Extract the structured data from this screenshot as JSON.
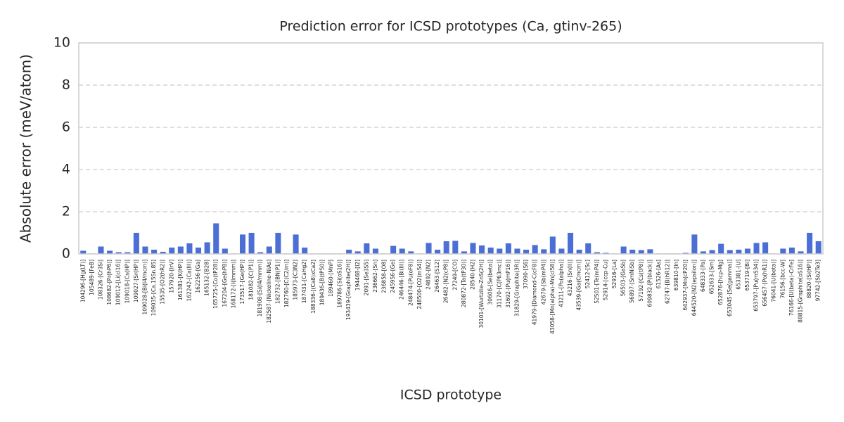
{
  "chart_data": {
    "type": "bar",
    "title": "Prediction error for ICSD prototypes (Ca, gtinv-265)",
    "xlabel": "ICSD prototype",
    "ylabel": "Absolute error (meV/atom)",
    "color": "#4c6fd6",
    "grid": true,
    "ylim": [
      0,
      10
    ],
    "yticks": [
      0,
      2,
      4,
      6,
      8,
      10
    ],
    "categories": [
      "104296-[Hg(LT)]",
      "105489-[FeB]",
      "108326-[Cr3Si]",
      "108682-[Pr(hP6)]",
      "109012-[Li(cI16)]",
      "109018-[Cs(HP)]",
      "109027-[Sr(HP)]",
      "109028-[Bi(I4/mcm)]",
      "109035-[Ca.15Sn.85]",
      "15535-[O2(hR2)]",
      "157920-[IrV]",
      "161381-[K(HP)]",
      "162242-[Ca(III)]",
      "162256-[Ga]",
      "165132-[B28]",
      "165725-[Co(tP28)]",
      "167204-[Ge(hP8)]",
      "168172-[I(Immm)]",
      "173517-[Ge(HP)]",
      "181082-[C(P1)]",
      "181908-[Si(I4/mmm)]",
      "182587-[Nickeline-NiAs]",
      "182732-[BN(P1)]",
      "182760-[C(C2/m)]",
      "185973-[C3N2]",
      "187431-[CaHg2]",
      "188336-[(Ca8)xCa2]",
      "189436-[B(tP50)]",
      "189460-[MnP]",
      "189786-[Si(oS16)]",
      "193439-[Graphite(2H)]",
      "194468-[I2]",
      "2091-[Se3S5]",
      "236662-[Sn]",
      "236858-[O8]",
      "245956-[Ge]",
      "246446-[Bi(III)]",
      "248474-[Pu(oF8)]",
      "248500-[O2(mS4)]",
      "24892-[N2]",
      "26463-[S12]",
      "26482-[N2(cP8)]",
      "27249-[CO]",
      "280872-[Ta(tP30)]",
      "28540-[H2]",
      "30101-[Wurtzite-ZnS(2H)]",
      "30606-[Se(beta)]",
      "31170-[C(P63mc)]",
      "31692-[Pu(mP16)]",
      "31829-[Graphite(3R)]",
      "37090-[S6]",
      "41979-[Diamond-C(cF8)]",
      "42679-[Sb(mP4)]",
      "43058-[Mn(alpha)-Mn(cI58)]",
      "43211-[Po(alpha)]",
      "43216-[Sn(II)]",
      "43539-[Ga(Cmcm)]",
      "52412-[Sc]",
      "52501-[Te(mP4)]",
      "52914-[ccp-Cu]",
      "52916-[La]",
      "56503-[GaSb]",
      "56897-[SmNiSb]",
      "57192-[Cs(tP8)]",
      "609832-[P(black)]",
      "61526-[As]",
      "62747-[B(hR12)]",
      "639810-[In]",
      "642937-[Mn(cP20)]",
      "644520-[N2(epsilon)]",
      "648333-[Pa]",
      "652633-[Sm]",
      "652876-[hcp-Mg]",
      "653045-[Se(gamma)]",
      "653381-[U]",
      "653719-[Bi]",
      "653797-[Pu(mS34)]",
      "656457-[Po(hR1)]",
      "76041-[U(beta)]",
      "76156-[bcc-W]",
      "76166-[U(beta)-CrFe]",
      "88815-[Graphite(oS16)]",
      "88820-[Si(HP)]",
      "97742-[Sb2Te3]"
    ],
    "values": [
      0.15,
      0.02,
      0.35,
      0.15,
      0.08,
      0.08,
      1.0,
      0.35,
      0.2,
      0.1,
      0.3,
      0.35,
      0.5,
      0.3,
      0.55,
      1.45,
      0.25,
      0.02,
      0.92,
      1.0,
      0.08,
      0.35,
      1.0,
      0.02,
      0.92,
      0.3,
      0.02,
      0.02,
      0.02,
      0.02,
      0.2,
      0.12,
      0.5,
      0.25,
      0.02,
      0.38,
      0.25,
      0.12,
      0.02,
      0.52,
      0.2,
      0.6,
      0.62,
      0.12,
      0.52,
      0.4,
      0.3,
      0.25,
      0.5,
      0.25,
      0.2,
      0.42,
      0.22,
      0.82,
      0.25,
      1.0,
      0.2,
      0.5,
      0.08,
      0.05,
      0.02,
      0.35,
      0.2,
      0.18,
      0.22,
      0.02,
      0.02,
      0.02,
      0.05,
      0.92,
      0.12,
      0.18,
      0.48,
      0.18,
      0.2,
      0.25,
      0.52,
      0.55,
      0.02,
      0.25,
      0.3,
      0.12,
      1.0,
      0.6
    ]
  }
}
